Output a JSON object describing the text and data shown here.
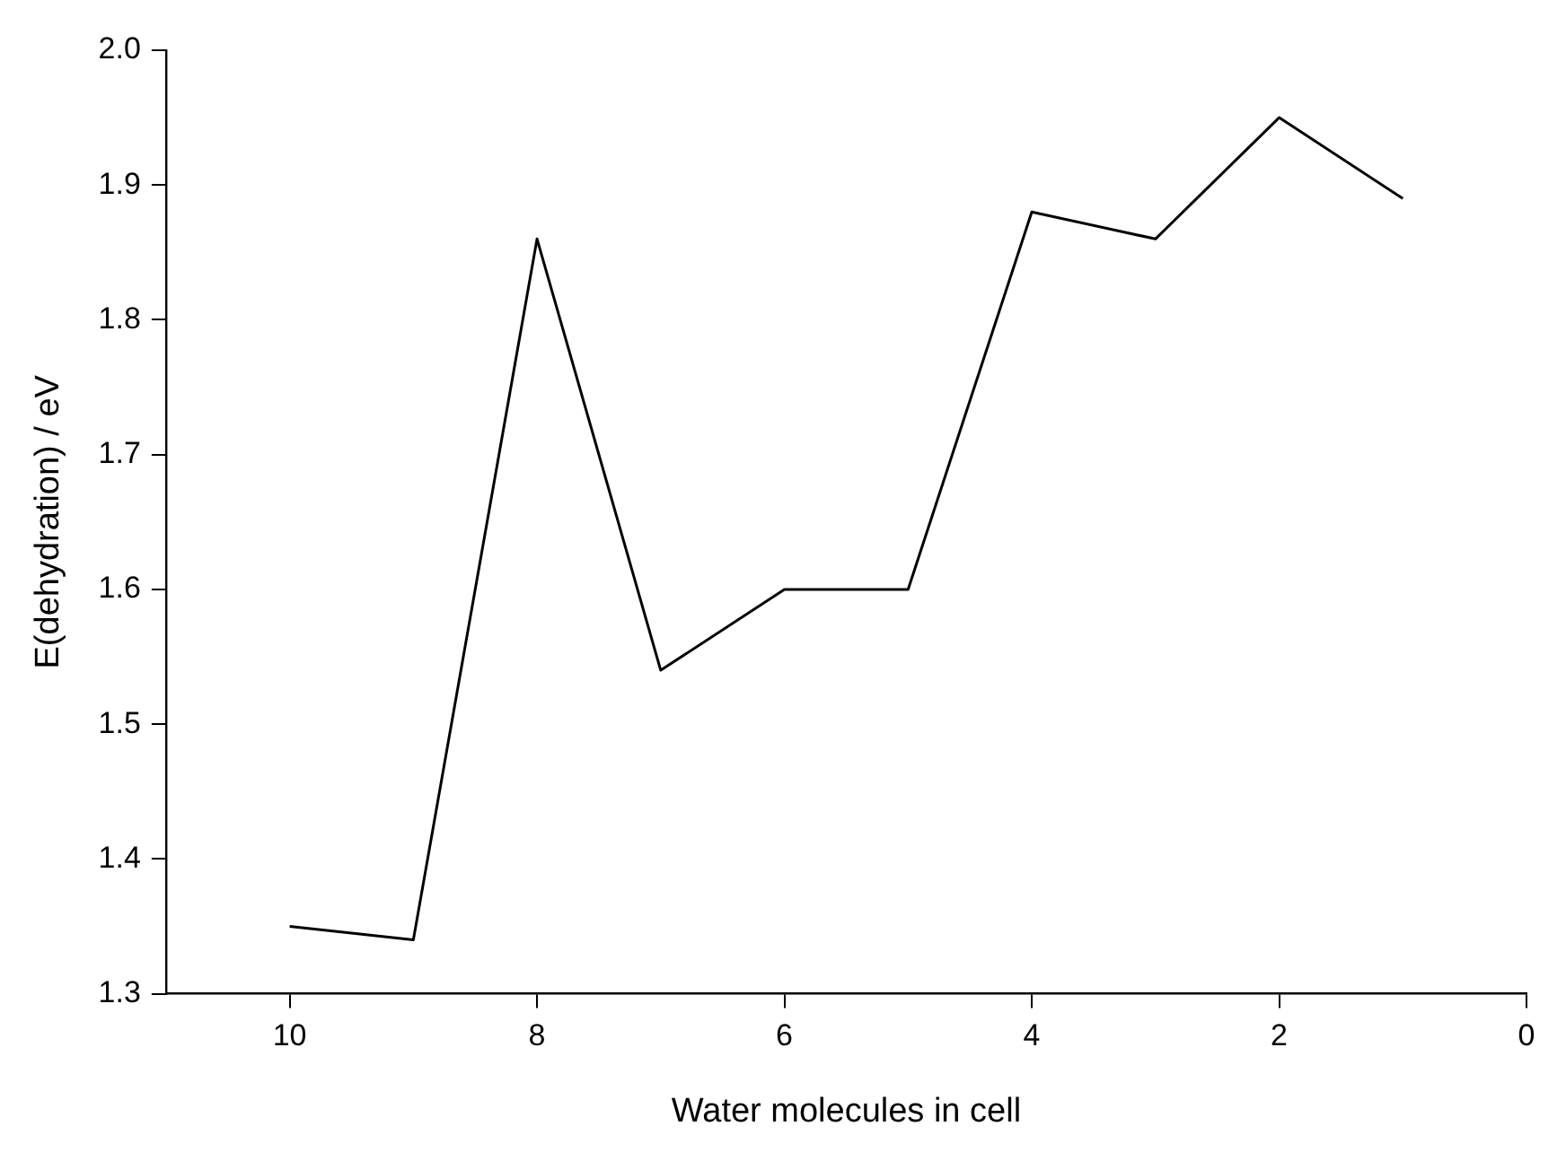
{
  "chart_data": {
    "type": "line",
    "xlabel": "Water molecules in cell",
    "ylabel": "E(dehydration) / eV",
    "x": [
      10,
      9,
      8,
      7,
      6,
      5,
      4,
      3,
      2,
      1
    ],
    "series": [
      {
        "color": "#000000",
        "values": [
          1.35,
          1.34,
          1.86,
          1.54,
          1.6,
          1.6,
          1.88,
          1.86,
          1.95,
          1.89
        ]
      }
    ],
    "xlim": [
      11,
      0
    ],
    "xticks": [
      10,
      8,
      6,
      4,
      2,
      0
    ],
    "ylim": [
      1.3,
      2.0
    ],
    "yticks": [
      {
        "value": 1.3,
        "label": "1.3"
      },
      {
        "value": 1.4,
        "label": "1.4"
      },
      {
        "value": 1.5,
        "label": "1.5"
      },
      {
        "value": 1.6,
        "label": "1.6"
      },
      {
        "value": 1.7,
        "label": "1.7"
      },
      {
        "value": 1.8,
        "label": "1.8"
      },
      {
        "value": 1.9,
        "label": "1.9"
      },
      {
        "value": 2.0,
        "label": "2.0"
      }
    ],
    "grid": false,
    "legend": false,
    "marker": "none",
    "line_style": "solid"
  }
}
